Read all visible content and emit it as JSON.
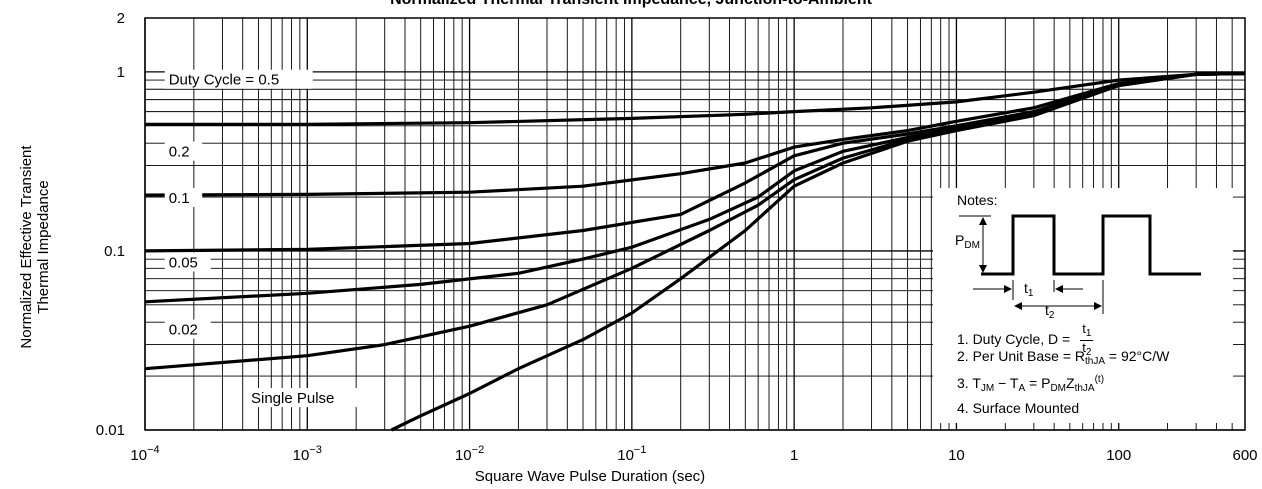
{
  "title": "Normalized Thermal Transient Impedance, Junction-to-Ambient",
  "chart_data": {
    "type": "line",
    "x_scale": "log",
    "y_scale": "log",
    "xlim": [
      0.0001,
      600
    ],
    "ylim": [
      0.01,
      2
    ],
    "xlabel": "Square Wave Pulse Duration (sec)",
    "ylabel_lines": [
      "Normalized Effective Transient",
      "Thermal Impedance"
    ],
    "x_tick_labels": [
      {
        "base": "10",
        "exp": "−4",
        "value": 0.0001
      },
      {
        "base": "10",
        "exp": "−3",
        "value": 0.001
      },
      {
        "base": "10",
        "exp": "−2",
        "value": 0.01
      },
      {
        "base": "10",
        "exp": "−1",
        "value": 0.1
      },
      {
        "base": "1",
        "exp": "",
        "value": 1
      },
      {
        "base": "10",
        "exp": "",
        "value": 10
      },
      {
        "base": "100",
        "exp": "",
        "value": 100
      },
      {
        "base": "600",
        "exp": "",
        "value": 600
      }
    ],
    "y_tick_labels": [
      {
        "label": "0.01",
        "value": 0.01
      },
      {
        "label": "0.1",
        "value": 0.1
      },
      {
        "label": "1",
        "value": 1
      },
      {
        "label": "2",
        "value": 2
      }
    ],
    "grid": true,
    "series": [
      {
        "name": "Duty Cycle = 0.5",
        "label_at": [
          0.00014,
          0.87
        ],
        "points": [
          [
            0.0001,
            0.51
          ],
          [
            0.001,
            0.51
          ],
          [
            0.01,
            0.52
          ],
          [
            0.1,
            0.55
          ],
          [
            0.5,
            0.58
          ],
          [
            1,
            0.6
          ],
          [
            3,
            0.63
          ],
          [
            10,
            0.68
          ],
          [
            30,
            0.77
          ],
          [
            100,
            0.9
          ],
          [
            300,
            0.97
          ],
          [
            600,
            0.98
          ]
        ]
      },
      {
        "name": "0.2",
        "label_at": [
          0.00014,
          0.345
        ],
        "points": [
          [
            0.0001,
            0.205
          ],
          [
            0.001,
            0.207
          ],
          [
            0.01,
            0.213
          ],
          [
            0.05,
            0.23
          ],
          [
            0.2,
            0.27
          ],
          [
            0.5,
            0.31
          ],
          [
            1,
            0.38
          ],
          [
            2,
            0.42
          ],
          [
            5,
            0.47
          ],
          [
            10,
            0.53
          ],
          [
            30,
            0.63
          ],
          [
            100,
            0.86
          ],
          [
            300,
            0.97
          ],
          [
            600,
            0.98
          ]
        ]
      },
      {
        "name": "0.1",
        "label_at": [
          0.00014,
          0.19
        ],
        "points": [
          [
            0.0001,
            0.1
          ],
          [
            0.001,
            0.102
          ],
          [
            0.01,
            0.11
          ],
          [
            0.05,
            0.13
          ],
          [
            0.2,
            0.16
          ],
          [
            0.5,
            0.24
          ],
          [
            1,
            0.34
          ],
          [
            2,
            0.4
          ],
          [
            5,
            0.45
          ],
          [
            10,
            0.5
          ],
          [
            30,
            0.6
          ],
          [
            100,
            0.85
          ],
          [
            300,
            0.97
          ],
          [
            600,
            0.98
          ]
        ]
      },
      {
        "name": "0.05",
        "label_at": [
          0.00014,
          0.083
        ],
        "points": [
          [
            0.0001,
            0.052
          ],
          [
            0.001,
            0.058
          ],
          [
            0.005,
            0.065
          ],
          [
            0.02,
            0.075
          ],
          [
            0.05,
            0.09
          ],
          [
            0.1,
            0.105
          ],
          [
            0.3,
            0.15
          ],
          [
            0.6,
            0.2
          ],
          [
            1,
            0.28
          ],
          [
            2,
            0.36
          ],
          [
            5,
            0.43
          ],
          [
            10,
            0.49
          ],
          [
            30,
            0.59
          ],
          [
            100,
            0.85
          ],
          [
            300,
            0.97
          ],
          [
            600,
            0.98
          ]
        ]
      },
      {
        "name": "0.02",
        "label_at": [
          0.00014,
          0.035
        ],
        "points": [
          [
            0.0001,
            0.022
          ],
          [
            0.001,
            0.026
          ],
          [
            0.003,
            0.03
          ],
          [
            0.01,
            0.038
          ],
          [
            0.03,
            0.05
          ],
          [
            0.1,
            0.08
          ],
          [
            0.3,
            0.13
          ],
          [
            0.6,
            0.18
          ],
          [
            1,
            0.25
          ],
          [
            2,
            0.33
          ],
          [
            5,
            0.42
          ],
          [
            10,
            0.48
          ],
          [
            30,
            0.58
          ],
          [
            100,
            0.84
          ],
          [
            300,
            0.97
          ],
          [
            600,
            0.98
          ]
        ]
      },
      {
        "name": "Single Pulse",
        "label_at": [
          0.00045,
          0.0145
        ],
        "points": [
          [
            0.0033,
            0.01
          ],
          [
            0.005,
            0.012
          ],
          [
            0.01,
            0.016
          ],
          [
            0.02,
            0.022
          ],
          [
            0.05,
            0.032
          ],
          [
            0.1,
            0.045
          ],
          [
            0.2,
            0.07
          ],
          [
            0.5,
            0.13
          ],
          [
            1,
            0.23
          ],
          [
            2,
            0.31
          ],
          [
            5,
            0.41
          ],
          [
            10,
            0.47
          ],
          [
            30,
            0.57
          ],
          [
            100,
            0.84
          ],
          [
            300,
            0.97
          ],
          [
            600,
            0.98
          ]
        ]
      }
    ]
  },
  "notes": {
    "heading": "Notes:",
    "pdm_label": "P",
    "pdm_sub": "DM",
    "t1_label": "t",
    "t1_sub": "1",
    "t2_label": "t",
    "t2_sub": "2",
    "note1_text": "1. Duty Cycle, D =",
    "note1_num": "t",
    "note1_num_sub": "1",
    "note1_den": "t",
    "note1_den_sub": "2",
    "note2_a": "2. Per Unit Base = R",
    "note2_sub": "thJA",
    "note2_b": " = 92°C/W",
    "note3_a": "3. T",
    "note3_sub1": "JM",
    "note3_b": " − T",
    "note3_sub2": "A",
    "note3_c": " = P",
    "note3_sub3": "DM",
    "note3_d": "Z",
    "note3_sub4": "thJA",
    "note3_sup": "(t)",
    "note4": "4. Surface Mounted"
  }
}
